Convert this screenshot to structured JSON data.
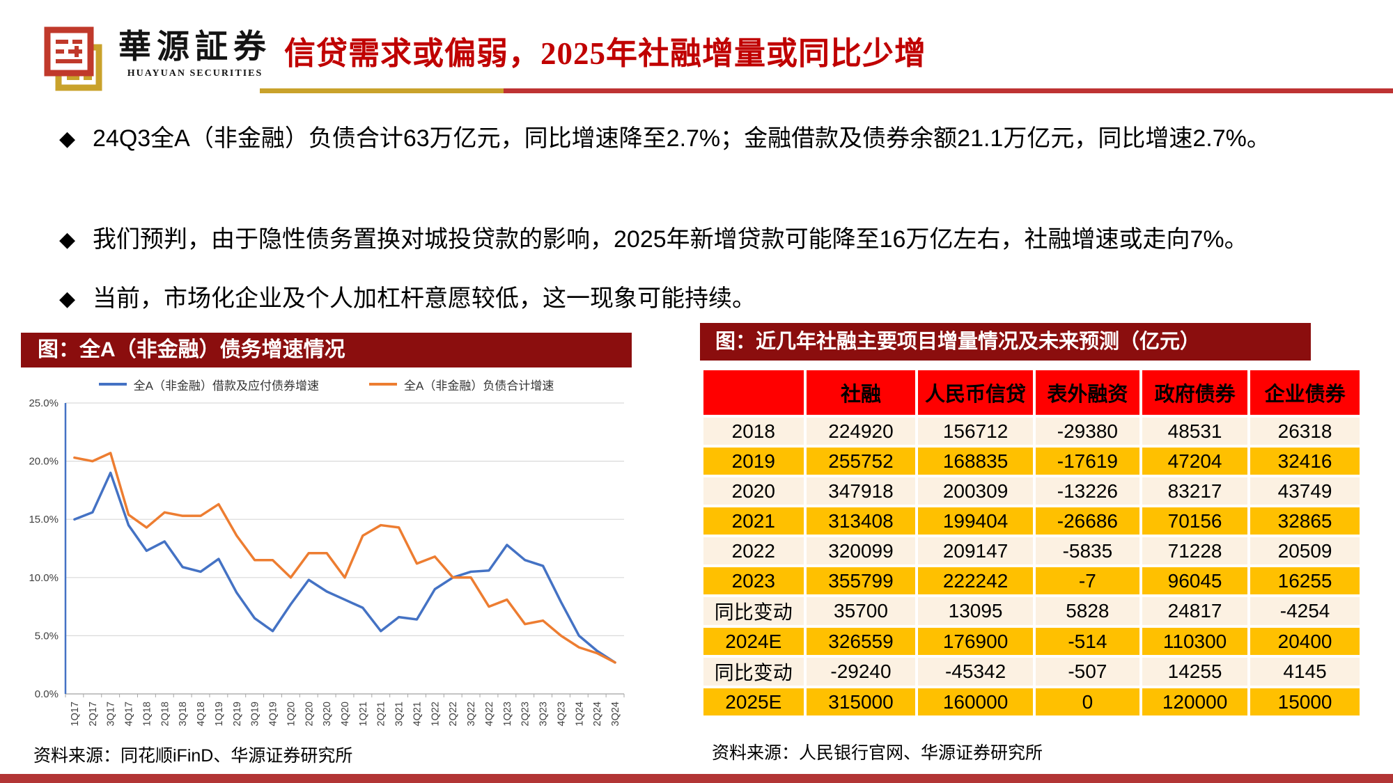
{
  "header": {
    "logo": {
      "name_cn": "華源証券",
      "name_en": "HUAYUAN SECURITIES"
    },
    "title": "信贷需求或偏弱，2025年社融增量或同比少增",
    "accent_gold": "#C9A22B",
    "accent_red": "#BE3333"
  },
  "bullets": [
    "24Q3全A（非金融）负债合计63万亿元，同比增速降至2.7%；金融借款及债券余额21.1万亿元，同比增速2.7%。",
    "我们预判，由于隐性债务置换对城投贷款的影响，2025年新增贷款可能降至16万亿左右，社融增速或走向7%。",
    "当前，市场化企业及个人加杠杆意愿较低，这一现象可能持续。"
  ],
  "left_panel": {
    "banner": "图：全A（非金融）债务增速情况",
    "source": "资料来源：同花顺iFinD、华源证券研究所"
  },
  "chart_data": {
    "type": "line",
    "title": "全A（非金融）债务增速情况",
    "categories": [
      "1Q17",
      "2Q17",
      "3Q17",
      "4Q17",
      "1Q18",
      "2Q18",
      "3Q18",
      "4Q18",
      "1Q19",
      "2Q19",
      "3Q19",
      "4Q19",
      "1Q20",
      "2Q20",
      "3Q20",
      "4Q20",
      "1Q21",
      "2Q21",
      "3Q21",
      "4Q21",
      "1Q22",
      "2Q22",
      "3Q22",
      "4Q22",
      "1Q23",
      "2Q23",
      "3Q23",
      "4Q23",
      "1Q24",
      "2Q24",
      "3Q24"
    ],
    "series": [
      {
        "name": "全A（非金融）借款及应付债券增速",
        "color": "#4472C4",
        "values": [
          15.0,
          15.6,
          19.0,
          14.5,
          12.3,
          13.1,
          10.9,
          10.5,
          11.6,
          8.7,
          6.5,
          5.4,
          7.7,
          9.8,
          8.8,
          8.1,
          7.4,
          5.4,
          6.6,
          6.4,
          9.0,
          10.0,
          10.5,
          10.6,
          12.8,
          11.5,
          11.0,
          7.9,
          5.0,
          3.7,
          2.7
        ]
      },
      {
        "name": "全A（非金融）负债合计增速",
        "color": "#ED7D31",
        "values": [
          20.3,
          20.0,
          20.7,
          15.4,
          14.3,
          15.6,
          15.3,
          15.3,
          16.3,
          13.6,
          11.5,
          11.5,
          10.0,
          12.1,
          12.1,
          10.0,
          13.6,
          14.5,
          14.3,
          11.2,
          11.8,
          10.0,
          10.0,
          7.5,
          8.1,
          6.0,
          6.3,
          5.0,
          4.0,
          3.5,
          2.7
        ]
      }
    ],
    "ylim": [
      0,
      25
    ],
    "ytick_step": 5,
    "ytick_format": "0.0%",
    "grid": true,
    "legend_position": "top"
  },
  "right_panel": {
    "banner": "图：近几年社融主要项目增量情况及未来预测（亿元）",
    "source": "资料来源：人民银行官网、华源证券研究所",
    "table": {
      "columns": [
        "",
        "社融",
        "人民币信贷",
        "表外融资",
        "政府债券",
        "企业债券"
      ],
      "col_widths_pct": [
        15.6,
        17.0,
        17.8,
        16.2,
        16.4,
        17.0
      ],
      "rows": [
        {
          "label": "2018",
          "values": [
            "224920",
            "156712",
            "-29380",
            "48531",
            "26318"
          ]
        },
        {
          "label": "2019",
          "values": [
            "255752",
            "168835",
            "-17619",
            "47204",
            "32416"
          ]
        },
        {
          "label": "2020",
          "values": [
            "347918",
            "200309",
            "-13226",
            "83217",
            "43749"
          ]
        },
        {
          "label": "2021",
          "values": [
            "313408",
            "199404",
            "-26686",
            "70156",
            "32865"
          ]
        },
        {
          "label": "2022",
          "values": [
            "320099",
            "209147",
            "-5835",
            "71228",
            "20509"
          ]
        },
        {
          "label": "2023",
          "values": [
            "355799",
            "222242",
            "-7",
            "96045",
            "16255"
          ]
        },
        {
          "label": "同比变动",
          "values": [
            "35700",
            "13095",
            "5828",
            "24817",
            "-4254"
          ]
        },
        {
          "label": "2024E",
          "values": [
            "326559",
            "176900",
            "-514",
            "110300",
            "20400"
          ]
        },
        {
          "label": "同比变动",
          "values": [
            "-29240",
            "-45342",
            "-507",
            "14255",
            "4145"
          ]
        },
        {
          "label": "2025E",
          "values": [
            "315000",
            "160000",
            "0",
            "120000",
            "15000"
          ]
        }
      ],
      "colors": {
        "header_bg": "#FF0000",
        "row_cream": "#FCF1E2",
        "row_gold": "#FFC000",
        "banner_bg": "#8B0E0E"
      }
    }
  },
  "footer": {
    "bar_color": "#B23535"
  }
}
